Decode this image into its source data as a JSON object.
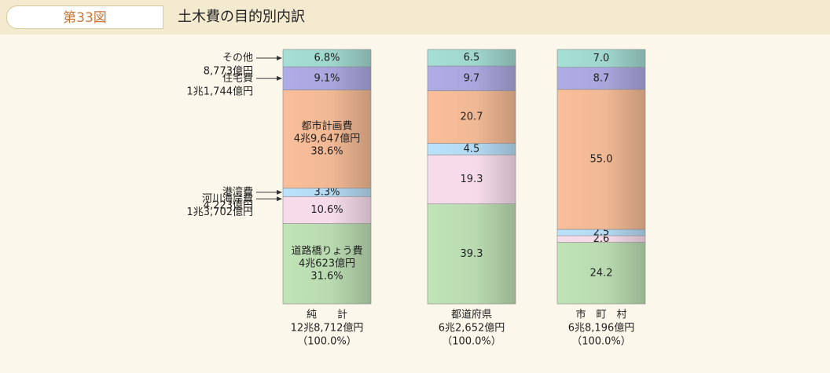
{
  "header": {
    "figure_label": "第33図",
    "title": "土木費の目的別内訳"
  },
  "chart_data": {
    "type": "bar",
    "stacked": true,
    "orientation": "vertical",
    "unit": "%",
    "columns": [
      {
        "name_lines": [
          "純　　計",
          "12兆8,712億円",
          "（100.0%）"
        ],
        "segments": [
          {
            "category": "道路橋りょう費",
            "value": 31.6,
            "label_lines": [
              "道路橋りょう費",
              "4兆623億円",
              "31.6%"
            ]
          },
          {
            "category": "河川海岸費",
            "value": 10.6,
            "label_lines": [
              "10.6%"
            ]
          },
          {
            "category": "港湾費",
            "value": 3.3,
            "label_lines": [
              "3.3%"
            ]
          },
          {
            "category": "都市計画費",
            "value": 38.6,
            "label_lines": [
              "都市計画費",
              "4兆9,647億円",
              "38.6%"
            ]
          },
          {
            "category": "住宅費",
            "value": 9.1,
            "label_lines": [
              "9.1%"
            ]
          },
          {
            "category": "その他",
            "value": 6.8,
            "label_lines": [
              "6.8%"
            ]
          }
        ]
      },
      {
        "name_lines": [
          "都道府県",
          "6兆2,652億円",
          "（100.0%）"
        ],
        "segments": [
          {
            "category": "道路橋りょう費",
            "value": 39.3,
            "label_lines": [
              "39.3"
            ]
          },
          {
            "category": "河川海岸費",
            "value": 19.3,
            "label_lines": [
              "19.3"
            ]
          },
          {
            "category": "港湾費",
            "value": 4.5,
            "label_lines": [
              "4.5"
            ]
          },
          {
            "category": "都市計画費",
            "value": 20.7,
            "label_lines": [
              "20.7"
            ]
          },
          {
            "category": "住宅費",
            "value": 9.7,
            "label_lines": [
              "9.7"
            ]
          },
          {
            "category": "その他",
            "value": 6.5,
            "label_lines": [
              "6.5"
            ]
          }
        ]
      },
      {
        "name_lines": [
          "市　町　村",
          "6兆8,196億円",
          "（100.0%）"
        ],
        "segments": [
          {
            "category": "道路橋りょう費",
            "value": 24.2,
            "label_lines": [
              "24.2"
            ]
          },
          {
            "category": "河川海岸費",
            "value": 2.6,
            "label_lines": [
              "2.6"
            ]
          },
          {
            "category": "港湾費",
            "value": 2.5,
            "label_lines": [
              "2.5"
            ]
          },
          {
            "category": "都市計画費",
            "value": 55.0,
            "label_lines": [
              "55.0"
            ]
          },
          {
            "category": "住宅費",
            "value": 8.7,
            "label_lines": [
              "8.7"
            ]
          },
          {
            "category": "その他",
            "value": 7.0,
            "label_lines": [
              "7.0"
            ]
          }
        ]
      }
    ],
    "side_labels": [
      {
        "category": "その他",
        "lines": [
          "その他",
          "8,773億円"
        ]
      },
      {
        "category": "住宅費",
        "lines": [
          "住宅費",
          "1兆1,744億円"
        ]
      },
      {
        "category": "港湾費",
        "lines": [
          "港湾費",
          "4,223億円"
        ]
      },
      {
        "category": "河川海岸費",
        "lines": [
          "河川海岸費",
          "1兆3,702億円"
        ]
      }
    ],
    "colors": {
      "道路橋りょう費": "#b9dab0",
      "河川海岸費": "#f6dcea",
      "港湾費": "#b3d9f2",
      "都市計画費": "#f0b894",
      "住宅費": "#a8a6dc",
      "その他": "#9fd6cd"
    }
  }
}
